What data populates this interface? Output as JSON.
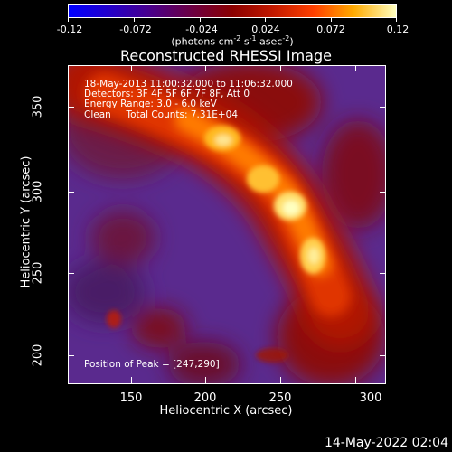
{
  "colorbar": {
    "ticks": [
      "-0.12",
      "-0.072",
      "-0.024",
      "0.024",
      "0.072",
      "0.12"
    ],
    "units_prefix": "(photons cm",
    "units_exp1": "-2",
    "units_mid": " s",
    "units_exp2": "-1",
    "units_suffix": " asec",
    "units_exp3": "-2",
    "units_end": ")"
  },
  "title": "Reconstructed RHESSI Image",
  "overlay": {
    "line1": "18-May-2013 11:00:32.000 to 11:06:32.000",
    "line2": "Detectors: 3F 4F 5F 6F 7F 8F, Att 0",
    "line3": "Energy Range: 3.0 - 6.0 keV",
    "line4": "Clean     Total Counts: 7.31E+04",
    "peak": "Position of Peak = [247,290]"
  },
  "axes": {
    "xlabel": "Heliocentric X (arcsec)",
    "ylabel": "Heliocentric Y (arcsec)",
    "xticks": [
      "150",
      "200",
      "250",
      "300"
    ],
    "yticks": [
      "350",
      "300",
      "250",
      "200"
    ]
  },
  "timestamp": "14-May-2022 02:04",
  "colors": {
    "background": "#000000",
    "low": "#6a3aa8",
    "high": "#ffffc0"
  }
}
